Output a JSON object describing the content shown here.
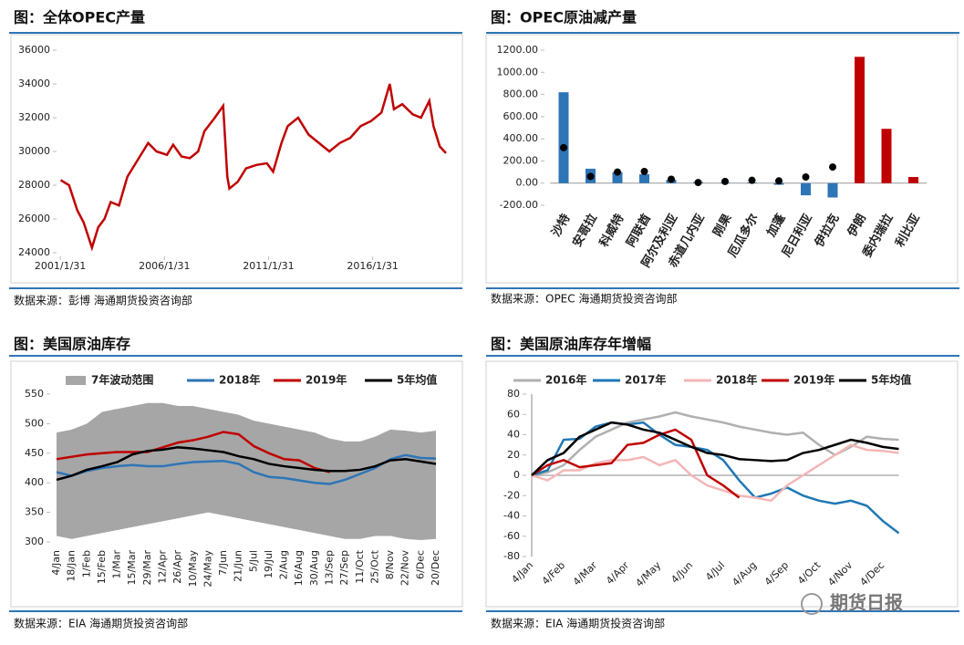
{
  "chart_data": [
    {
      "type": "line",
      "title": "图：全体OPEC产量",
      "source": "数据来源：彭博    海通期货投资咨询部",
      "x": [
        2001.1,
        2001.5,
        2001.9,
        2002.2,
        2002.6,
        2002.9,
        2003.2,
        2003.5,
        2003.9,
        2004.3,
        2004.8,
        2005.3,
        2005.7,
        2006.2,
        2006.5,
        2006.9,
        2007.3,
        2007.7,
        2008.0,
        2008.5,
        2008.9,
        2009.1,
        2009.2,
        2009.6,
        2010.0,
        2010.5,
        2011.0,
        2011.3,
        2011.7,
        2012.0,
        2012.5,
        2013.0,
        2013.5,
        2014.0,
        2014.5,
        2015.0,
        2015.5,
        2016.0,
        2016.5,
        2016.9,
        2017.1,
        2017.5,
        2018.0,
        2018.4,
        2018.8,
        2019.0,
        2019.3,
        2019.6
      ],
      "series": [
        {
          "color": "#c00000",
          "values": [
            28300,
            28000,
            26500,
            25800,
            24300,
            25500,
            26000,
            27000,
            26800,
            28500,
            29500,
            30500,
            30000,
            29800,
            30400,
            29700,
            29600,
            30000,
            31200,
            32000,
            32700,
            28500,
            27800,
            28200,
            29000,
            29200,
            29300,
            28800,
            30500,
            31500,
            32000,
            31000,
            30500,
            30000,
            30500,
            30800,
            31500,
            31800,
            32300,
            34000,
            32500,
            32800,
            32200,
            32000,
            33000,
            31500,
            30300,
            29900
          ]
        }
      ],
      "xlim": [
        2000.9,
        2020.3
      ],
      "xticks": [
        {
          "value": 2001.08,
          "label": "2001/1/31"
        },
        {
          "value": 2006.08,
          "label": "2006/1/31"
        },
        {
          "value": 2011.08,
          "label": "2011/1/31"
        },
        {
          "value": 2016.08,
          "label": "2016/1/31"
        }
      ],
      "ylim": [
        24000,
        36000
      ],
      "yticks": [
        24000,
        26000,
        28000,
        30000,
        32000,
        34000,
        36000
      ]
    },
    {
      "type": "bar",
      "title": "图：OPEC原油减产量",
      "source": "数据来源：OPEC  海通期货投资咨询部",
      "categories": [
        "沙特",
        "安哥拉",
        "科威特",
        "阿联酋",
        "阿尔及利亚",
        "赤道几内亚",
        "刚果",
        "厄瓜多尔",
        "加蓬",
        "尼日利亚",
        "伊拉克",
        "伊朗",
        "委内瑞拉",
        "利比亚"
      ],
      "series": [
        {
          "colors": [
            "#2e75b6",
            "#2e75b6",
            "#2e75b6",
            "#2e75b6",
            "#2e75b6",
            "#2e75b6",
            "#2e75b6",
            "#2e75b6",
            "#2e75b6",
            "#2e75b6",
            "#2e75b6",
            "#c00000",
            "#c00000",
            "#c00000"
          ],
          "values": [
            820,
            130,
            100,
            80,
            30,
            10,
            5,
            5,
            -15,
            -110,
            -130,
            1140,
            490,
            55
          ]
        },
        {
          "color": "#000000",
          "values": [
            320,
            60,
            100,
            105,
            35,
            5,
            15,
            25,
            20,
            55,
            145,
            null,
            null,
            null
          ]
        }
      ],
      "ylim": [
        -200,
        1200
      ],
      "yticks": [
        {
          "value": -200,
          "label": "-200.00"
        },
        {
          "value": 0,
          "label": "0.00"
        },
        {
          "value": 200,
          "label": "200.00"
        },
        {
          "value": 400,
          "label": "400.00"
        },
        {
          "value": 600,
          "label": "600.00"
        },
        {
          "value": 800,
          "label": "800.00"
        },
        {
          "value": 1000,
          "label": "1000.00"
        },
        {
          "value": 1200,
          "label": "1200.00"
        }
      ]
    },
    {
      "type": "line",
      "title": "图：美国原油库存",
      "source": "数据来源：EIA   海通期货投资咨询部",
      "categories": [
        "4/Jan",
        "18/Jan",
        "1/Feb",
        "15/Feb",
        "1/Mar",
        "15/Mar",
        "29/Mar",
        "12/Apr",
        "26/Apr",
        "10/May",
        "24/May",
        "7/Jun",
        "21/Jun",
        "5/Jul",
        "19/Jul",
        "2/Aug",
        "16/Aug",
        "30/Aug",
        "13/Sep",
        "27/Sep",
        "11/Oct",
        "25/Oct",
        "8/Nov",
        "22/Nov",
        "6/Dec",
        "20/Dec"
      ],
      "range": {
        "name": "7年波动范围",
        "color": "#a6a6a6",
        "high": [
          485,
          490,
          500,
          520,
          525,
          530,
          535,
          535,
          530,
          530,
          525,
          520,
          515,
          505,
          500,
          495,
          490,
          485,
          475,
          470,
          470,
          478,
          490,
          488,
          485,
          488
        ],
        "low": [
          310,
          305,
          310,
          315,
          320,
          325,
          330,
          335,
          340,
          345,
          350,
          345,
          340,
          335,
          330,
          325,
          320,
          315,
          310,
          305,
          305,
          310,
          310,
          305,
          303,
          305
        ]
      },
      "series": [
        {
          "name": "2018年",
          "color": "#2e75b6",
          "values": [
            418,
            412,
            420,
            425,
            428,
            430,
            428,
            428,
            432,
            435,
            436,
            437,
            432,
            418,
            410,
            408,
            404,
            400,
            398,
            405,
            415,
            425,
            440,
            447,
            442,
            441
          ]
        },
        {
          "name": "2019年",
          "color": "#c00000",
          "values": [
            440,
            444,
            448,
            450,
            452,
            452,
            452,
            460,
            468,
            472,
            478,
            486,
            482,
            462,
            450,
            440,
            438,
            425,
            418,
            null,
            null,
            null,
            null,
            null,
            null,
            null
          ]
        },
        {
          "name": "5年均值",
          "color": "#000000",
          "values": [
            405,
            412,
            422,
            428,
            435,
            448,
            454,
            456,
            460,
            458,
            455,
            452,
            445,
            440,
            432,
            428,
            425,
            422,
            420,
            420,
            422,
            428,
            438,
            440,
            436,
            432
          ]
        }
      ],
      "ylim": [
        300,
        550
      ],
      "yticks": [
        300,
        350,
        400,
        450,
        500,
        550
      ]
    },
    {
      "type": "line",
      "title": "图：美国原油库存年增幅",
      "source": "数据来源：EIA   海通期货投资咨询部",
      "categories": [
        "4/Jan",
        null,
        "4/Feb",
        null,
        "4/Mar",
        null,
        "4/Apr",
        null,
        "4/May",
        null,
        "4/Jun",
        null,
        "4/Jul",
        null,
        "4/Aug",
        null,
        "4/Sep",
        null,
        "4/Oct",
        null,
        "4/Nov",
        null,
        "4/Dec",
        null
      ],
      "series": [
        {
          "name": "2016年",
          "color": "#b0b0b0",
          "values": [
            0,
            3,
            10,
            25,
            38,
            45,
            52,
            55,
            58,
            62,
            58,
            55,
            52,
            48,
            45,
            42,
            40,
            42,
            30,
            20,
            28,
            38,
            36,
            35
          ]
        },
        {
          "name": "2017年",
          "color": "#1f78b4",
          "values": [
            0,
            5,
            35,
            36,
            48,
            52,
            50,
            52,
            40,
            30,
            28,
            25,
            15,
            -5,
            -22,
            -18,
            -12,
            -20,
            -25,
            -28,
            -25,
            -30,
            -45,
            -57
          ]
        },
        {
          "name": "2018年",
          "color": "#f4b6b6",
          "values": [
            0,
            -5,
            5,
            5,
            12,
            15,
            15,
            18,
            10,
            15,
            0,
            -10,
            -15,
            -20,
            -22,
            -25,
            -10,
            0,
            10,
            20,
            30,
            25,
            24,
            22
          ]
        },
        {
          "name": "2019年",
          "color": "#c00000",
          "values": [
            0,
            10,
            15,
            8,
            10,
            12,
            30,
            32,
            40,
            45,
            35,
            0,
            -10,
            -22,
            null,
            null,
            null,
            null,
            null,
            null,
            null,
            null,
            null,
            null
          ]
        },
        {
          "name": "5年均值",
          "color": "#000000",
          "values": [
            0,
            15,
            22,
            38,
            45,
            52,
            50,
            45,
            42,
            35,
            28,
            22,
            20,
            16,
            15,
            14,
            15,
            22,
            25,
            30,
            35,
            32,
            28,
            26
          ]
        }
      ],
      "ylim": [
        -80,
        80
      ],
      "yticks": [
        -80,
        -60,
        -40,
        -20,
        0,
        20,
        40,
        60,
        80
      ]
    }
  ],
  "watermark": "期货日报"
}
